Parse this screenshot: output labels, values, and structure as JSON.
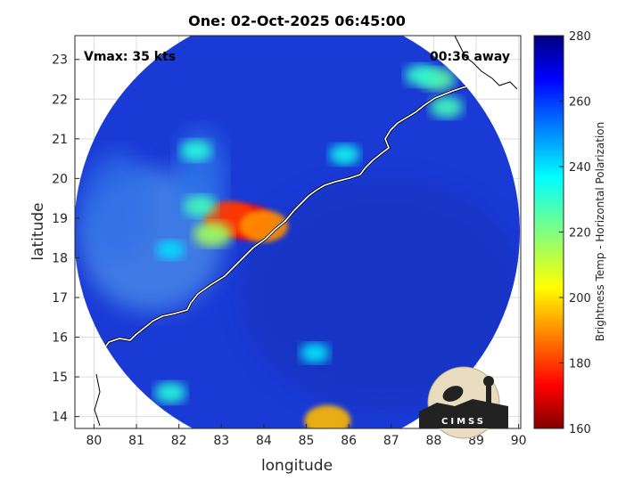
{
  "chart_data": {
    "type": "heatmap",
    "title": "One: 02-Oct-2025 06:45:00",
    "xlabel": "longitude",
    "ylabel": "latitude",
    "xlim": [
      79.55,
      90.05
    ],
    "ylim": [
      13.7,
      23.6
    ],
    "xticks": [
      "80",
      "81",
      "82",
      "83",
      "84",
      "85",
      "86",
      "87",
      "88",
      "89",
      "90"
    ],
    "yticks": [
      "14",
      "15",
      "16",
      "17",
      "18",
      "19",
      "20",
      "21",
      "22",
      "23"
    ],
    "grid": true,
    "colorbar": {
      "label": "Brightness Temp - Horizontal Polarization",
      "range": [
        160,
        280
      ],
      "ticks": [
        "280",
        "260",
        "240",
        "220",
        "200",
        "180",
        "160"
      ],
      "colormap": "jet"
    },
    "annotations": {
      "vmax": "Vmax: 35 kts",
      "time_away": "00:36 away"
    },
    "features": [
      {
        "lon": 83.6,
        "lat": 18.9,
        "tb": 175
      },
      {
        "lon": 83.2,
        "lat": 19.0,
        "tb": 180
      },
      {
        "lon": 84.0,
        "lat": 18.8,
        "tb": 190
      },
      {
        "lon": 82.8,
        "lat": 18.6,
        "tb": 215
      },
      {
        "lon": 82.5,
        "lat": 19.3,
        "tb": 228
      },
      {
        "lon": 82.4,
        "lat": 20.7,
        "tb": 232
      },
      {
        "lon": 81.8,
        "lat": 18.2,
        "tb": 240
      },
      {
        "lon": 85.9,
        "lat": 20.6,
        "tb": 235
      },
      {
        "lon": 88.1,
        "lat": 22.5,
        "tb": 225
      },
      {
        "lon": 87.7,
        "lat": 22.6,
        "tb": 230
      },
      {
        "lon": 88.3,
        "lat": 21.8,
        "tb": 228
      },
      {
        "lon": 85.2,
        "lat": 15.6,
        "tb": 238
      },
      {
        "lon": 81.8,
        "lat": 14.6,
        "tb": 232
      },
      {
        "lon": 85.5,
        "lat": 13.9,
        "tb": 195
      }
    ],
    "logo": "CIMSS"
  },
  "colors": {
    "background_disk": "#1a3ad6",
    "coastline": "#ffffff",
    "axis": "#262626",
    "grid": "#dcdcdc"
  }
}
